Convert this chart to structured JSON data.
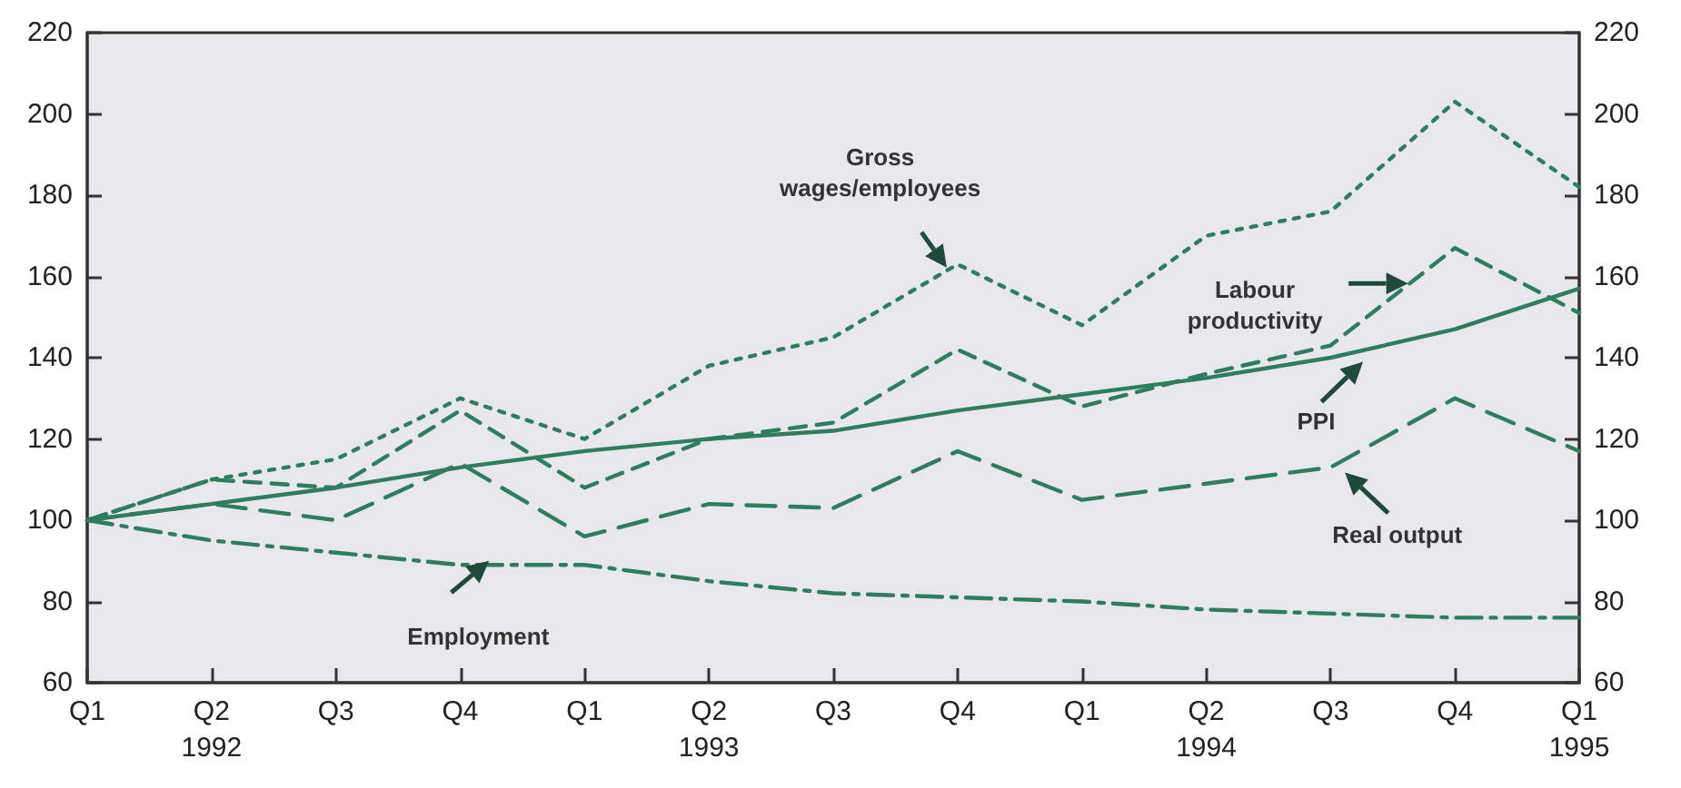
{
  "chart_data": {
    "type": "line",
    "categories": [
      "Q1",
      "Q2\n1992",
      "Q3",
      "Q4",
      "Q1",
      "Q2\n1993",
      "Q3",
      "Q4",
      "Q1",
      "Q2\n1994",
      "Q3",
      "Q4",
      "Q1\n1995"
    ],
    "ylim": [
      60,
      220
    ],
    "yticks": [
      60,
      80,
      100,
      120,
      140,
      160,
      180,
      200,
      220
    ],
    "y2lim": [
      60,
      220
    ],
    "y2ticks": [
      60,
      80,
      100,
      120,
      140,
      160,
      180,
      200,
      220
    ],
    "grid": false,
    "marker": "none",
    "series": [
      {
        "color": "#2e7d5e",
        "line_style": "dotted",
        "values": [
          100,
          110,
          115,
          130,
          120,
          138,
          145,
          163,
          148,
          170,
          176,
          203,
          182
        ]
      },
      {
        "color": "#2e7d5e",
        "line_style": "dashed",
        "values": [
          100,
          110,
          108,
          127,
          108,
          120,
          124,
          142,
          128,
          136,
          143,
          167,
          151
        ]
      },
      {
        "color": "#2e7d5e",
        "line_style": "dashed",
        "values": [
          100,
          104,
          100,
          114,
          96,
          104,
          103,
          117,
          105,
          109,
          113,
          130,
          117
        ]
      },
      {
        "color": "#2e7d5e",
        "line_style": "solid",
        "values": [
          100,
          104,
          108,
          113,
          117,
          120,
          122,
          127,
          131,
          135,
          140,
          147,
          157
        ]
      },
      {
        "color": "#2e7d5e",
        "line_style": "dashdot",
        "values": [
          100,
          95,
          92,
          89,
          89,
          85,
          82,
          81,
          80,
          78,
          77,
          76,
          76
        ]
      }
    ],
    "annotations": [
      "Gross\nwages/employees",
      "Labour\nproductivity",
      {
        "text": "PPI",
        "y": 139
      },
      "Real output",
      {
        "text": "Employment",
        "y": 90
      }
    ]
  }
}
